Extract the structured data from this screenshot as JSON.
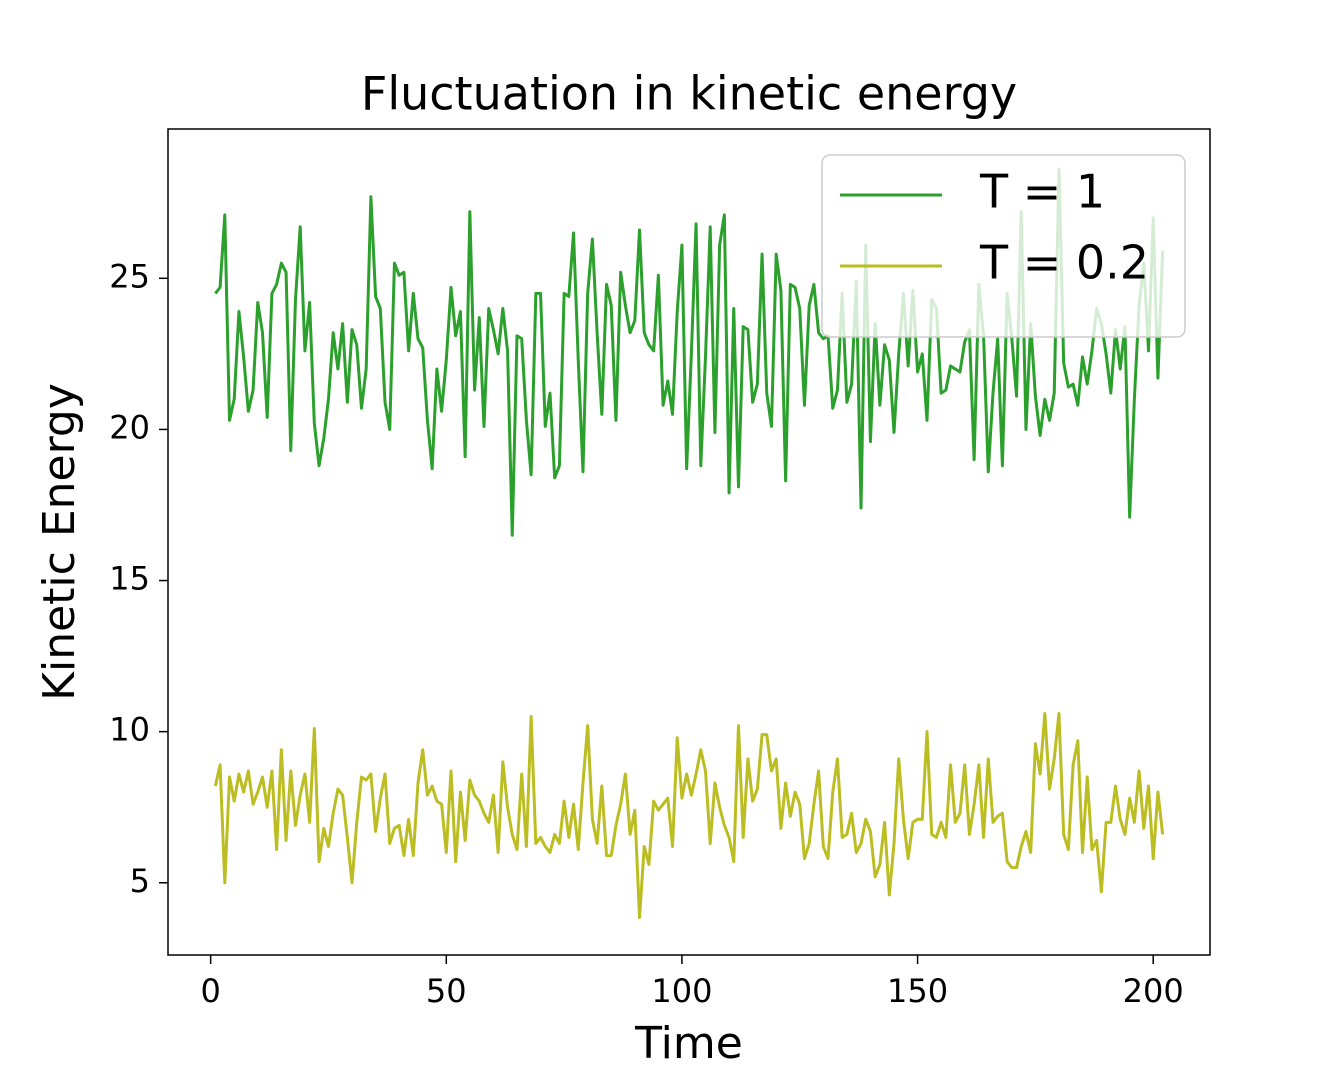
{
  "chart_data": {
    "type": "line",
    "title": "Fluctuation in kinetic energy",
    "xlabel": "Time",
    "ylabel": "Kinetic Energy",
    "x": [
      1,
      2,
      3,
      4,
      5,
      6,
      7,
      8,
      9,
      10,
      11,
      12,
      13,
      14,
      15,
      16,
      17,
      18,
      19,
      20,
      21,
      22,
      23,
      24,
      25,
      26,
      27,
      28,
      29,
      30,
      31,
      32,
      33,
      34,
      35,
      36,
      37,
      38,
      39,
      40,
      41,
      42,
      43,
      44,
      45,
      46,
      47,
      48,
      49,
      50,
      51,
      52,
      53,
      54,
      55,
      56,
      57,
      58,
      59,
      60,
      61,
      62,
      63,
      64,
      65,
      66,
      67,
      68,
      69,
      70,
      71,
      72,
      73,
      74,
      75,
      76,
      77,
      78,
      79,
      80,
      81,
      82,
      83,
      84,
      85,
      86,
      87,
      88,
      89,
      90,
      91,
      92,
      93,
      94,
      95,
      96,
      97,
      98,
      99,
      100,
      101,
      102,
      103,
      104,
      105,
      106,
      107,
      108,
      109,
      110,
      111,
      112,
      113,
      114,
      115,
      116,
      117,
      118,
      119,
      120,
      121,
      122,
      123,
      124,
      125,
      126,
      127,
      128,
      129,
      130,
      131,
      132,
      133,
      134,
      135,
      136,
      137,
      138,
      139,
      140,
      141,
      142,
      143,
      144,
      145,
      146,
      147,
      148,
      149,
      150,
      151,
      152,
      153,
      154,
      155,
      156,
      157,
      158,
      159,
      160,
      161,
      162,
      163,
      164,
      165,
      166,
      167,
      168,
      169,
      170,
      171,
      172,
      173,
      174,
      175,
      176,
      177,
      178,
      179,
      180,
      181,
      182,
      183,
      184,
      185,
      186,
      187,
      188,
      189,
      190,
      191,
      192,
      193,
      194,
      195,
      196,
      197,
      198,
      199,
      200,
      201,
      202
    ],
    "series": [
      {
        "name": "T = 1",
        "color": "#2ca02c",
        "values": [
          24.5,
          24.7,
          27.1,
          20.3,
          21.0,
          23.9,
          22.4,
          20.6,
          21.3,
          24.2,
          23.2,
          20.4,
          24.5,
          24.8,
          25.5,
          25.2,
          19.3,
          24.3,
          26.7,
          22.6,
          24.2,
          20.2,
          18.8,
          19.7,
          21.0,
          23.2,
          22.0,
          23.5,
          20.9,
          23.3,
          22.8,
          20.7,
          22.0,
          27.7,
          24.4,
          24.0,
          20.9,
          20.0,
          25.5,
          25.1,
          25.2,
          22.6,
          24.5,
          23.0,
          22.7,
          20.3,
          18.7,
          22.0,
          20.6,
          22.3,
          24.7,
          23.1,
          23.9,
          19.1,
          27.2,
          21.3,
          23.7,
          20.1,
          24.0,
          23.3,
          22.5,
          24.0,
          22.6,
          16.5,
          23.1,
          23.0,
          20.3,
          18.5,
          24.5,
          24.5,
          20.1,
          21.2,
          18.4,
          18.8,
          24.5,
          24.4,
          26.5,
          22.3,
          18.6,
          24.5,
          26.3,
          23.2,
          20.5,
          24.8,
          24.1,
          20.3,
          25.2,
          24.1,
          23.2,
          23.6,
          26.6,
          23.2,
          22.8,
          22.6,
          25.1,
          20.8,
          21.6,
          20.5,
          23.9,
          26.1,
          18.7,
          22.5,
          26.8,
          18.8,
          22.4,
          26.7,
          19.9,
          26.1,
          27.1,
          17.9,
          24.0,
          18.1,
          23.4,
          23.3,
          20.9,
          21.5,
          25.8,
          21.2,
          20.1,
          25.8,
          24.6,
          18.3,
          24.8,
          24.7,
          24.0,
          20.8,
          24.1,
          24.8,
          23.2,
          23.0,
          23.1,
          20.7,
          21.3,
          24.5,
          20.9,
          21.5,
          24.9,
          17.4,
          26.1,
          19.6,
          23.5,
          20.8,
          22.8,
          22.3,
          19.9,
          22.5,
          24.5,
          22.1,
          24.6,
          21.9,
          22.5,
          20.3,
          24.3,
          24.0,
          21.2,
          21.3,
          22.1,
          22.0,
          21.9,
          22.9,
          23.3,
          19.0,
          24.8,
          23.1,
          18.6,
          21.2,
          23.0,
          18.8,
          24.5,
          23.0,
          21.1,
          27.2,
          20.0,
          23.5,
          21.1,
          19.8,
          21.0,
          20.3,
          21.2,
          28.6,
          22.2,
          21.4,
          21.5,
          20.8,
          22.4,
          21.5,
          22.6,
          24.0,
          23.5,
          22.5,
          21.2,
          23.3,
          22.0,
          23.4,
          17.1,
          21.0,
          24.1,
          25.5,
          22.6,
          27.0,
          21.7,
          25.9
        ]
      },
      {
        "name": "T = 0.2",
        "color": "#bcbd22",
        "values": [
          8.2,
          8.9,
          5.0,
          8.5,
          7.7,
          8.6,
          8.0,
          8.7,
          7.6,
          8.0,
          8.5,
          7.5,
          8.7,
          6.1,
          9.4,
          6.4,
          8.7,
          6.9,
          7.9,
          8.6,
          7.0,
          10.1,
          5.7,
          6.8,
          6.2,
          7.3,
          8.1,
          7.9,
          6.5,
          5.0,
          7.0,
          8.5,
          8.4,
          8.6,
          6.7,
          7.8,
          8.6,
          6.3,
          6.8,
          6.9,
          5.9,
          7.1,
          5.9,
          8.3,
          9.4,
          7.9,
          8.2,
          7.7,
          7.6,
          6.0,
          8.7,
          5.7,
          8.0,
          6.4,
          8.4,
          7.9,
          7.7,
          7.3,
          7.0,
          7.9,
          6.0,
          9.0,
          7.5,
          6.6,
          6.1,
          8.6,
          6.2,
          10.5,
          6.3,
          6.5,
          6.2,
          6.0,
          6.6,
          6.3,
          7.7,
          6.5,
          7.6,
          6.1,
          8.3,
          10.2,
          7.1,
          6.3,
          8.2,
          5.9,
          5.9,
          6.9,
          7.6,
          8.6,
          6.6,
          7.4,
          3.85,
          6.2,
          5.6,
          7.7,
          7.4,
          7.6,
          7.8,
          6.2,
          9.8,
          7.8,
          8.6,
          7.9,
          8.6,
          9.4,
          8.7,
          6.3,
          8.3,
          7.5,
          6.9,
          6.5,
          5.7,
          10.2,
          6.5,
          9.1,
          7.7,
          8.1,
          9.9,
          9.9,
          8.7,
          9.1,
          6.8,
          8.3,
          7.2,
          8.0,
          7.6,
          5.8,
          6.3,
          7.6,
          8.7,
          6.2,
          5.8,
          8.0,
          9.1,
          6.5,
          6.6,
          7.3,
          6.0,
          6.3,
          7.1,
          6.7,
          5.2,
          5.6,
          7.0,
          4.6,
          6.3,
          9.1,
          7.1,
          5.8,
          7.0,
          7.1,
          7.1,
          10.0,
          6.6,
          6.5,
          7.0,
          6.5,
          8.9,
          7.0,
          7.3,
          8.9,
          6.6,
          7.6,
          8.9,
          6.5,
          9.1,
          7.0,
          7.2,
          7.3,
          5.7,
          5.5,
          5.5,
          6.2,
          6.7,
          6.0,
          9.6,
          8.6,
          10.6,
          8.1,
          9.1,
          10.6,
          6.6,
          6.1,
          8.9,
          9.7,
          6.0,
          8.5,
          6.1,
          6.4,
          4.7,
          7.0,
          7.0,
          8.2,
          7.1,
          6.6,
          7.8,
          7.0,
          8.7,
          6.8,
          8.2,
          5.8,
          8.0,
          6.6
        ]
      }
    ],
    "xlim": [
      -9.05,
      212.05
    ],
    "ylim": [
      2.61,
      29.94
    ],
    "xticks": [
      0,
      50,
      100,
      150,
      200
    ],
    "yticks": [
      5,
      10,
      15,
      20,
      25
    ],
    "legend": "upper right"
  }
}
